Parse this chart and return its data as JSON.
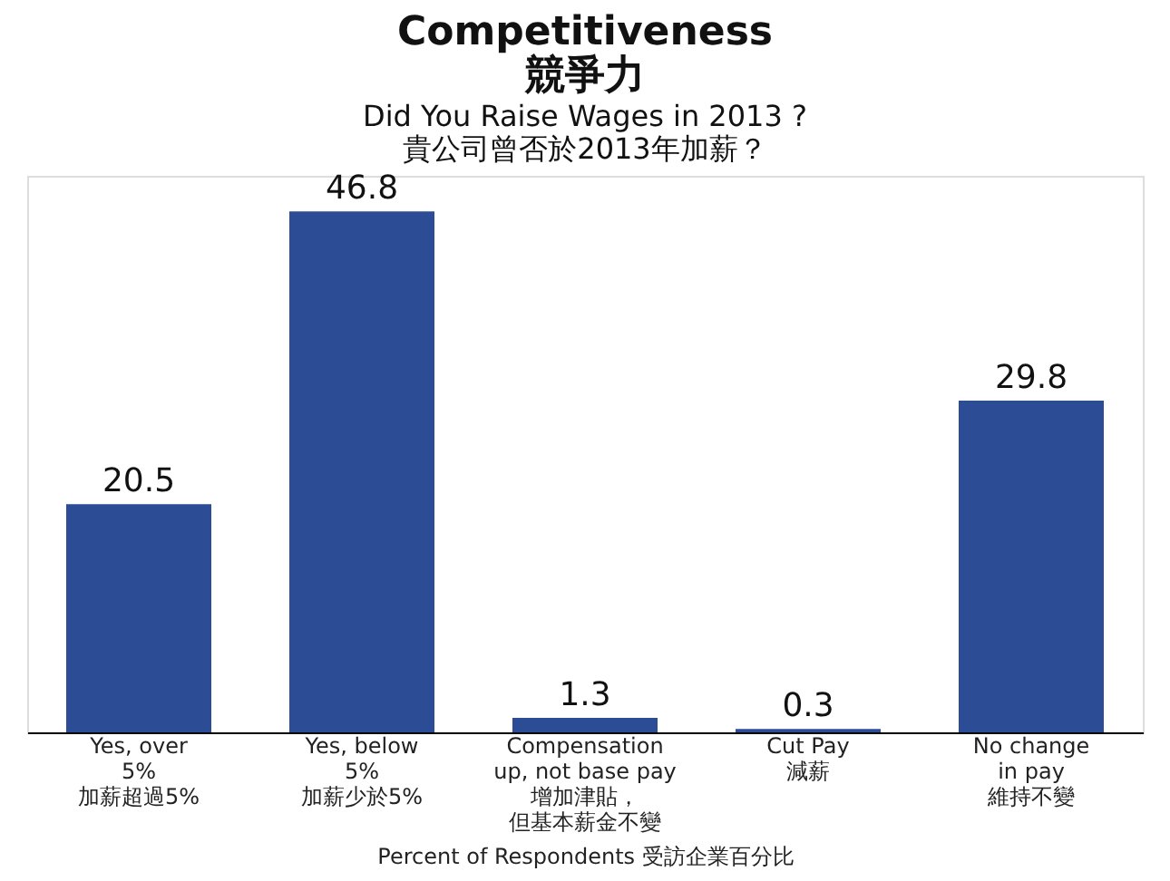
{
  "chart_data": {
    "type": "bar",
    "title": "Competitiveness\n競爭力",
    "subtitle": "Did You Raise Wages in 2013 ?\n貴公司曾否於2013年加薪？",
    "xlabel": "Percent of Respondents 受訪企業百分比",
    "categories": [
      "Yes, over\n5%\n加薪超過5%",
      "Yes, below\n5%\n加薪少於5%",
      "Compensation\nup, not base pay\n增加津貼，但基本薪金不變",
      "Cut Pay\n減薪",
      "No change\nin pay\n維持不變"
    ],
    "values": [
      20.5,
      46.8,
      1.3,
      0.3,
      29.8
    ],
    "color": "#2c4c96",
    "data_labels": true,
    "grid": false
  }
}
